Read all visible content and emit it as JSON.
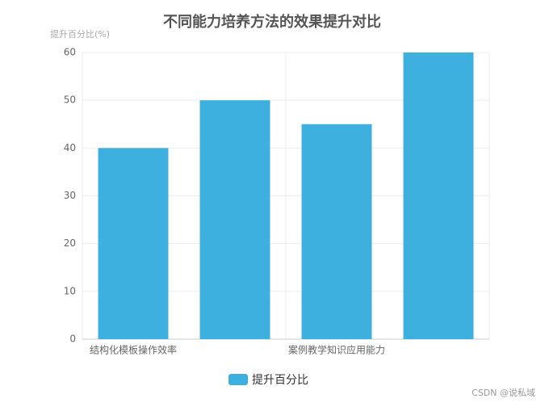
{
  "chart_data": {
    "type": "bar",
    "title": "不同能力培养方法的效果提升对比",
    "y_axis_label": "提升百分比(%)",
    "categories": [
      "结构化模板操作效率",
      null,
      "案例教学知识应用能力",
      null
    ],
    "series": [
      {
        "name": "提升百分比",
        "color": "#3eb0e0",
        "values": [
          40,
          50,
          45,
          60
        ]
      }
    ],
    "ylim": [
      0,
      60
    ],
    "yticks": [
      0,
      10,
      20,
      30,
      40,
      50,
      60
    ],
    "grid": true,
    "legend": "bottom",
    "watermark": "CSDN @说私域"
  }
}
